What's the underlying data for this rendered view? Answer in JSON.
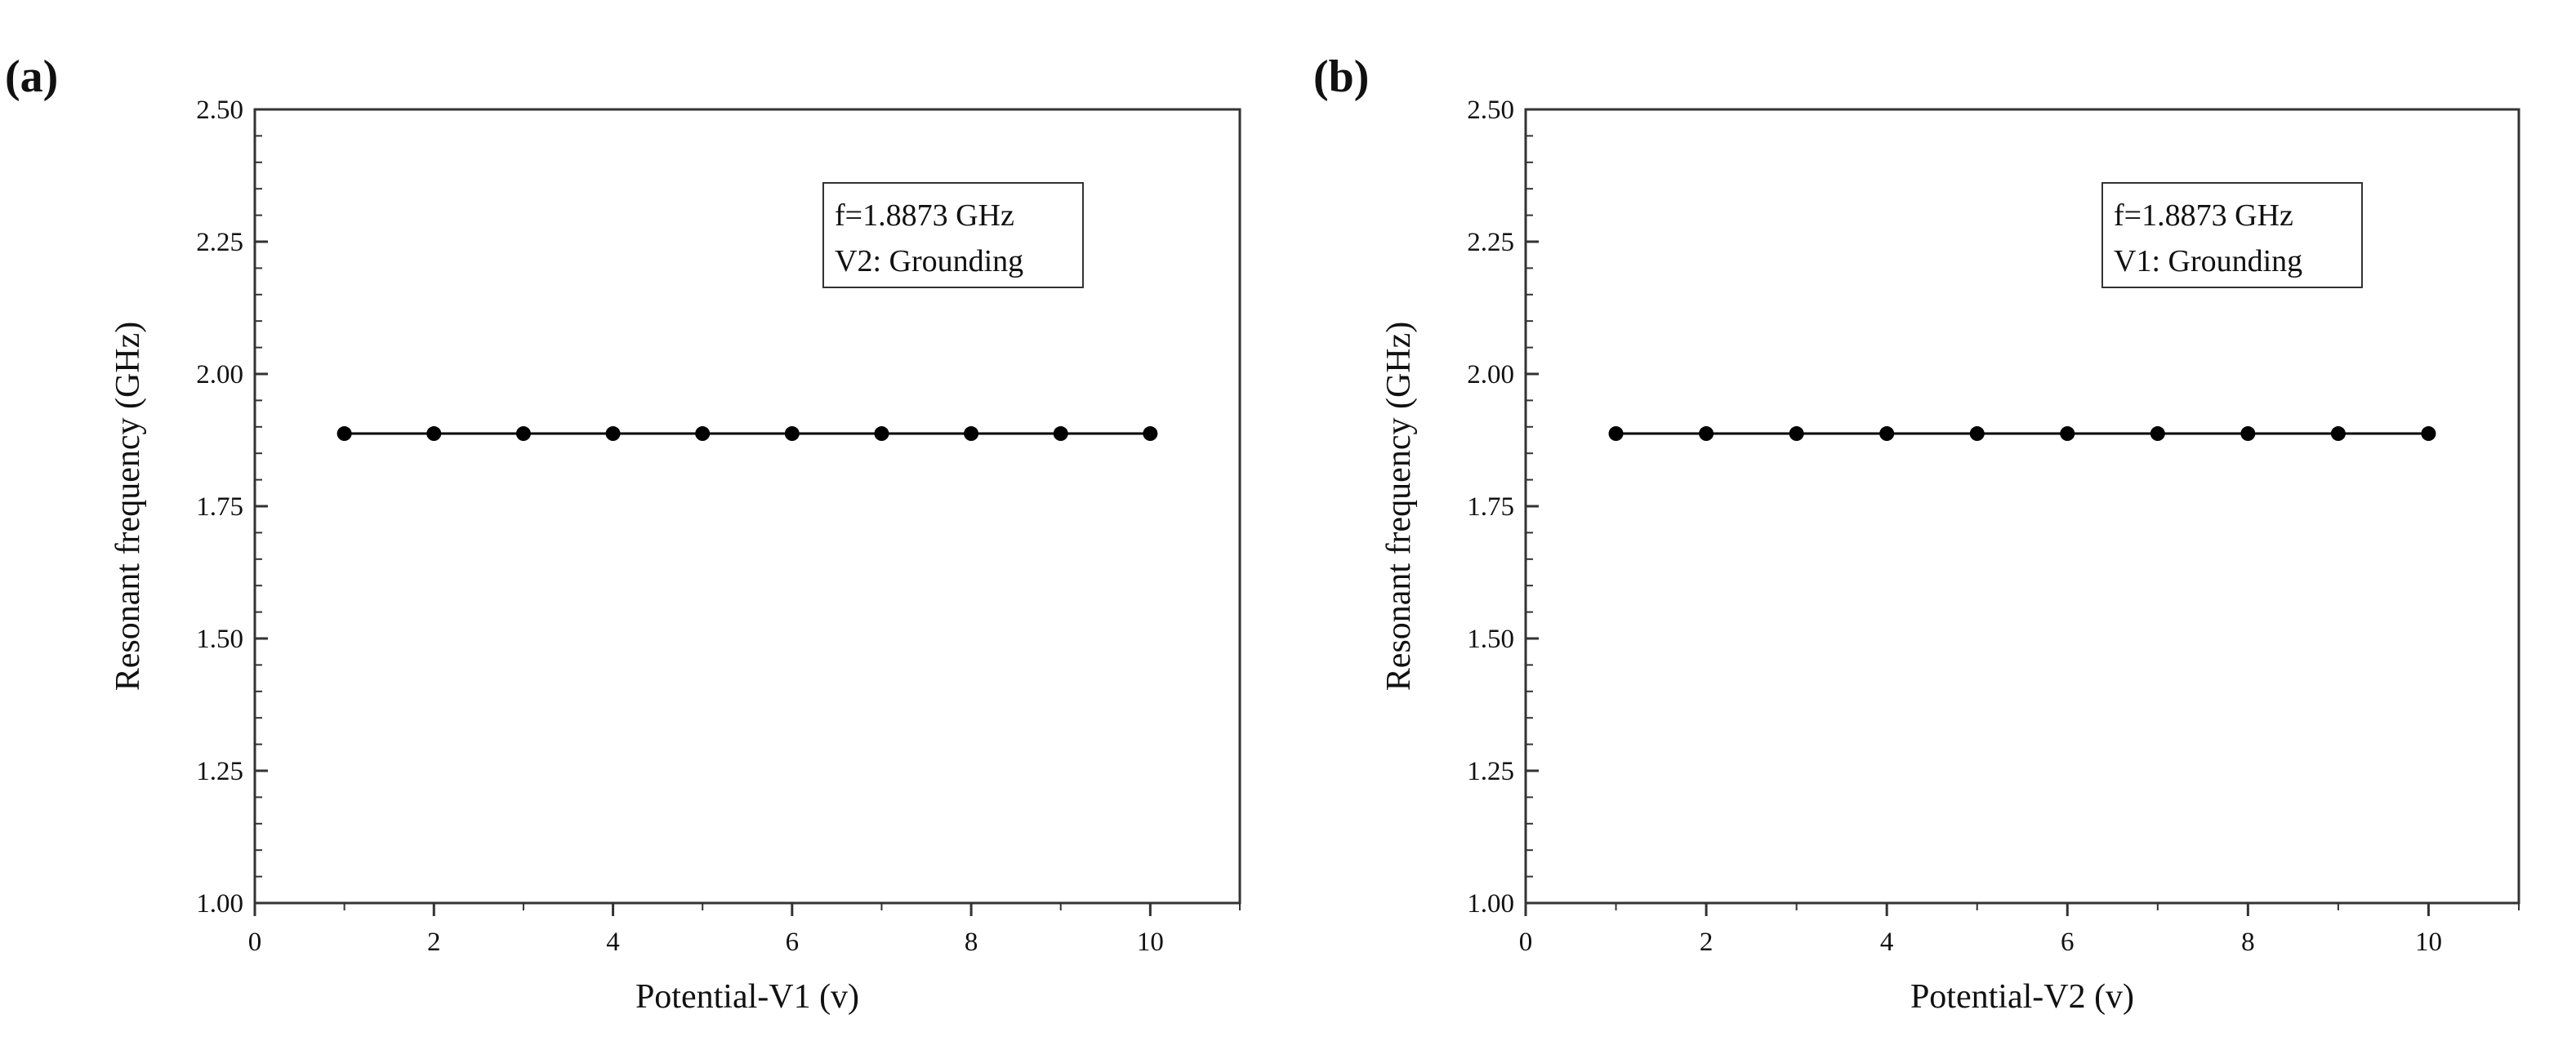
{
  "chart_data": [
    {
      "panel_label": "(a)",
      "type": "line",
      "title": "",
      "xlabel": "Potential-V1 (v)",
      "ylabel": "Resonant frequency (GHz)",
      "xlim": [
        0,
        11
      ],
      "ylim": [
        1.0,
        2.5
      ],
      "xticks": [
        0,
        2,
        4,
        6,
        8,
        10
      ],
      "yticks": [
        1.0,
        1.25,
        1.5,
        1.75,
        2.0,
        2.25,
        2.5
      ],
      "x_tick_labels": [
        "0",
        "2",
        "4",
        "6",
        "8",
        "10"
      ],
      "y_tick_labels": [
        "1.00",
        "1.25",
        "1.50",
        "1.75",
        "2.00",
        "2.25",
        "2.50"
      ],
      "grid": false,
      "legend_position": "upper-right",
      "legend_lines": [
        "f=1.8873 GHz",
        "V2: Grounding"
      ],
      "series": [
        {
          "name": "Resonant frequency",
          "color": "#000000",
          "marker": "circle",
          "x": [
            1,
            2,
            3,
            4,
            5,
            6,
            7,
            8,
            9,
            10
          ],
          "values": [
            1.8873,
            1.8873,
            1.8873,
            1.8873,
            1.8873,
            1.8873,
            1.8873,
            1.8873,
            1.8873,
            1.8873
          ]
        }
      ]
    },
    {
      "panel_label": "(b)",
      "type": "line",
      "title": "",
      "xlabel": "Potential-V2 (v)",
      "ylabel": "Resonant frequency (GHz)",
      "xlim": [
        0,
        11
      ],
      "ylim": [
        1.0,
        2.5
      ],
      "xticks": [
        0,
        2,
        4,
        6,
        8,
        10
      ],
      "yticks": [
        1.0,
        1.25,
        1.5,
        1.75,
        2.0,
        2.25,
        2.5
      ],
      "x_tick_labels": [
        "0",
        "2",
        "4",
        "6",
        "8",
        "10"
      ],
      "y_tick_labels": [
        "1.00",
        "1.25",
        "1.50",
        "1.75",
        "2.00",
        "2.25",
        "2.50"
      ],
      "grid": false,
      "legend_position": "upper-right",
      "legend_lines": [
        "f=1.8873 GHz",
        "V1: Grounding"
      ],
      "series": [
        {
          "name": "Resonant frequency",
          "color": "#000000",
          "marker": "circle",
          "x": [
            1,
            2,
            3,
            4,
            5,
            6,
            7,
            8,
            9,
            10
          ],
          "values": [
            1.8873,
            1.8873,
            1.8873,
            1.8873,
            1.8873,
            1.8873,
            1.8873,
            1.8873,
            1.8873,
            1.8873
          ]
        }
      ]
    }
  ]
}
